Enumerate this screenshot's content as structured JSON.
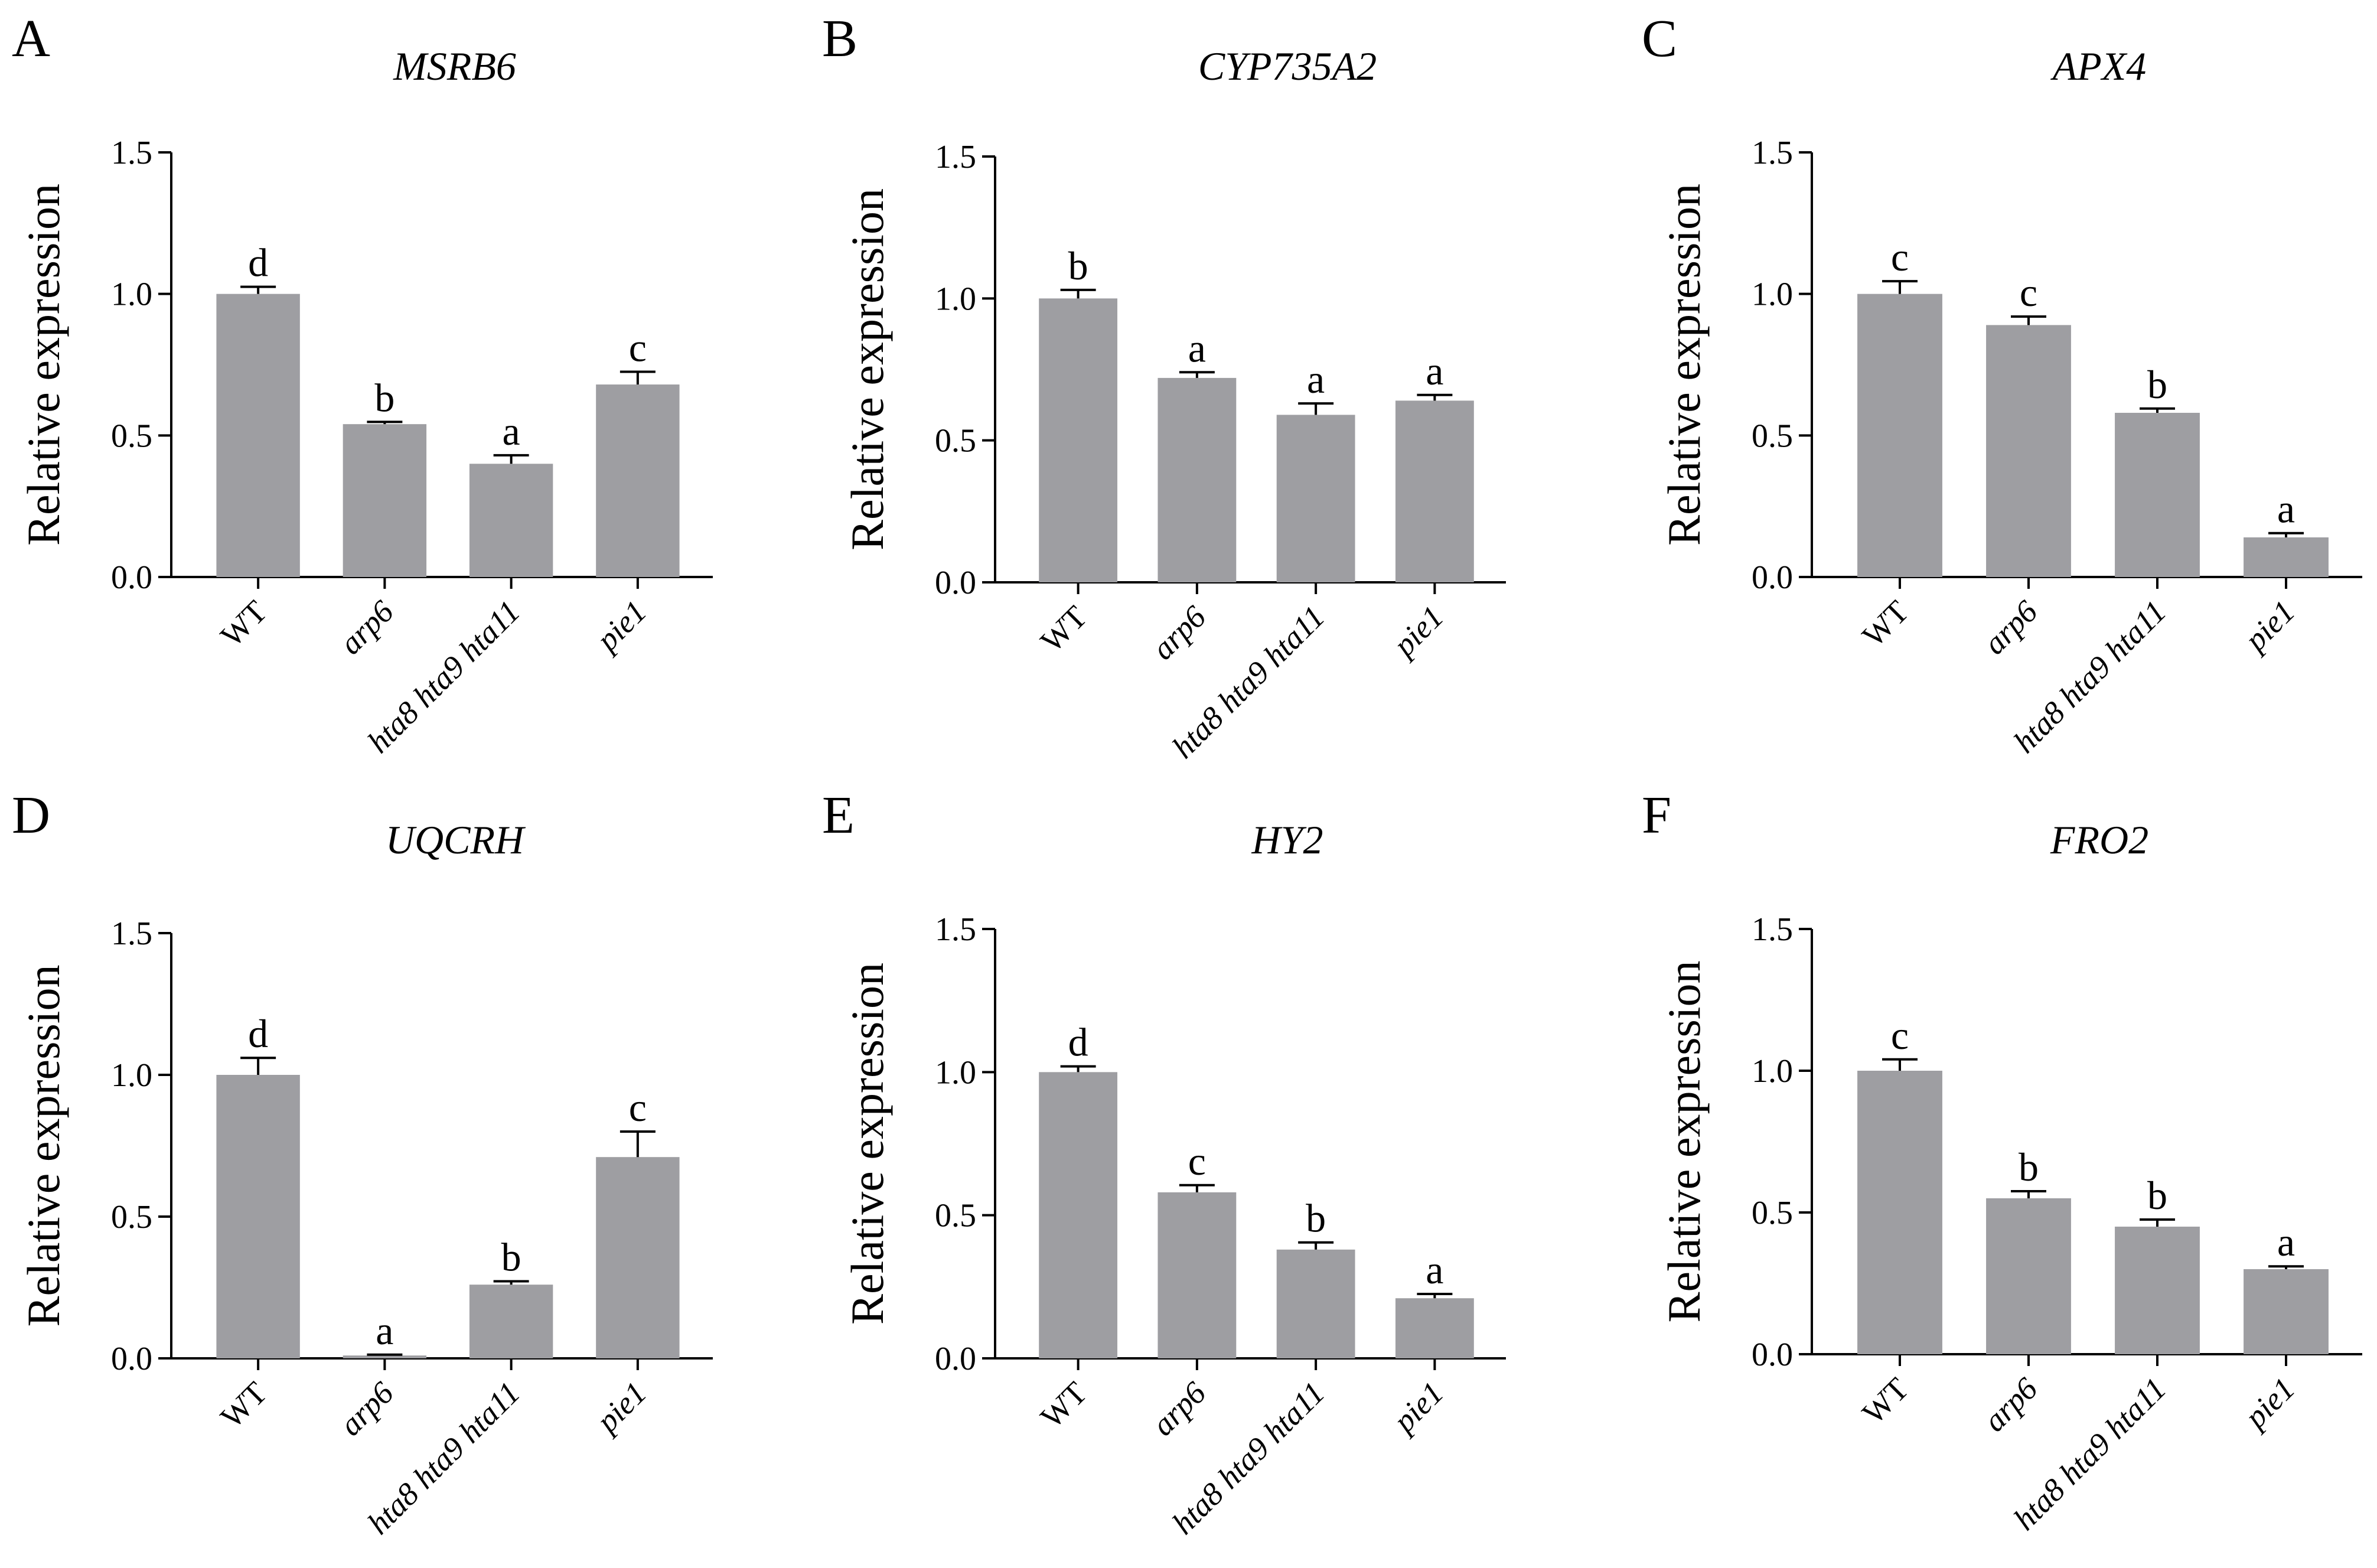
{
  "figure": {
    "bar_color": "#9e9ea2",
    "axis_color": "#000000",
    "background": "#ffffff"
  },
  "chart_data": [
    {
      "type": "bar",
      "panel": "A",
      "title": "MSRB6",
      "ylabel": "Relative expression",
      "ylim": [
        0,
        1.5
      ],
      "yticks": [
        "0.0",
        "0.5",
        "1.0",
        "1.5"
      ],
      "categories": [
        "WT",
        "arp6",
        "hta8 hta9 hta11",
        "pie1"
      ],
      "categories_italic": [
        false,
        true,
        true,
        true
      ],
      "values": [
        1.0,
        0.54,
        0.4,
        0.68
      ],
      "errors": [
        0.025,
        0.008,
        0.03,
        0.045
      ],
      "significance": [
        "d",
        "b",
        "a",
        "c"
      ]
    },
    {
      "type": "bar",
      "panel": "B",
      "title": "CYP735A2",
      "ylabel": "Relative expression",
      "ylim": [
        0,
        1.5
      ],
      "yticks": [
        "0.0",
        "0.5",
        "1.0",
        "1.5"
      ],
      "categories": [
        "WT",
        "arp6",
        "hta8 hta9 hta11",
        "pie1"
      ],
      "categories_italic": [
        false,
        true,
        true,
        true
      ],
      "values": [
        1.0,
        0.72,
        0.59,
        0.64
      ],
      "errors": [
        0.03,
        0.02,
        0.04,
        0.02
      ],
      "significance": [
        "b",
        "a",
        "a",
        "a"
      ]
    },
    {
      "type": "bar",
      "panel": "C",
      "title": "APX4",
      "ylabel": "Relative expression",
      "ylim": [
        0,
        1.5
      ],
      "yticks": [
        "0.0",
        "0.5",
        "1.0",
        "1.5"
      ],
      "categories": [
        "WT",
        "arp6",
        "hta8 hta9 hta11",
        "pie1"
      ],
      "categories_italic": [
        false,
        true,
        true,
        true
      ],
      "values": [
        1.0,
        0.89,
        0.58,
        0.14
      ],
      "errors": [
        0.045,
        0.03,
        0.015,
        0.015
      ],
      "significance": [
        "c",
        "c",
        "b",
        "a"
      ]
    },
    {
      "type": "bar",
      "panel": "D",
      "title": "UQCRH",
      "ylabel": "Relative expression",
      "ylim": [
        0,
        1.5
      ],
      "yticks": [
        "0.0",
        "0.5",
        "1.0",
        "1.5"
      ],
      "categories": [
        "WT",
        "arp6",
        "hta8 hta9 hta11",
        "pie1"
      ],
      "categories_italic": [
        false,
        true,
        true,
        true
      ],
      "values": [
        1.0,
        0.01,
        0.26,
        0.71
      ],
      "errors": [
        0.06,
        0.003,
        0.012,
        0.09
      ],
      "significance": [
        "d",
        "a",
        "b",
        "c"
      ]
    },
    {
      "type": "bar",
      "panel": "E",
      "title": "HY2",
      "ylabel": "Relative expression",
      "ylim": [
        0,
        1.5
      ],
      "yticks": [
        "0.0",
        "0.5",
        "1.0",
        "1.5"
      ],
      "categories": [
        "WT",
        "arp6",
        "hta8 hta9 hta11",
        "pie1"
      ],
      "categories_italic": [
        false,
        true,
        true,
        true
      ],
      "values": [
        1.0,
        0.58,
        0.38,
        0.21
      ],
      "errors": [
        0.02,
        0.025,
        0.025,
        0.015
      ],
      "significance": [
        "d",
        "c",
        "b",
        "a"
      ]
    },
    {
      "type": "bar",
      "panel": "F",
      "title": "FRO2",
      "ylabel": "Relative expression",
      "ylim": [
        0,
        1.5
      ],
      "yticks": [
        "0.0",
        "0.5",
        "1.0",
        "1.5"
      ],
      "categories": [
        "WT",
        "arp6",
        "hta8 hta9 hta11",
        "pie1"
      ],
      "categories_italic": [
        false,
        true,
        true,
        true
      ],
      "values": [
        1.0,
        0.55,
        0.45,
        0.3
      ],
      "errors": [
        0.04,
        0.025,
        0.025,
        0.01
      ],
      "significance": [
        "c",
        "b",
        "b",
        "a"
      ]
    }
  ]
}
